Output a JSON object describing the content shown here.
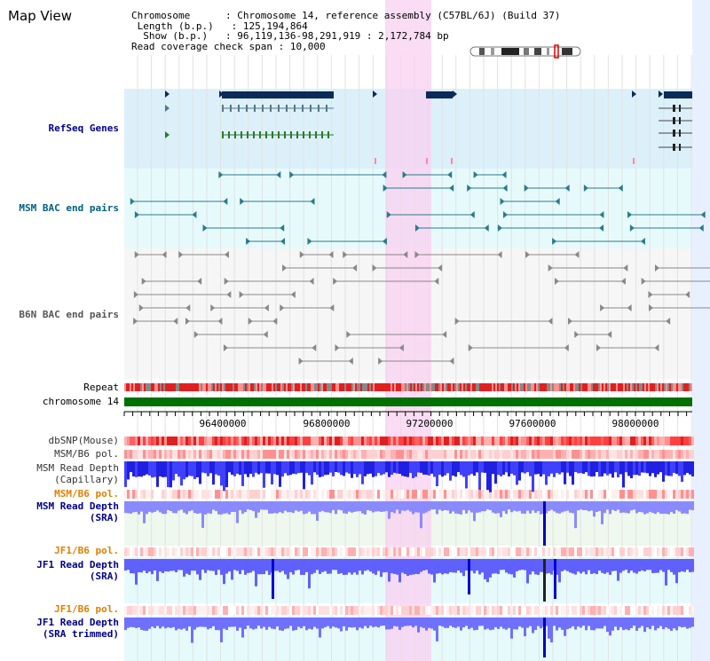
{
  "title": "Map View",
  "info": {
    "chromosome_key": "Chromosome",
    "chromosome_val": "Chromosome 14, reference assembly (C57BL/6J) (Build 37)",
    "length_key": "Length (b.p.)",
    "length_val": "125,194,864",
    "show_key": "Show (b.p.)",
    "show_val": "96,119,136-98,291,919 : 2,172,784 bp",
    "span_key": "Read coverage check span",
    "span_val": "10,000"
  },
  "tracks": {
    "refseq": "RefSeq Genes",
    "msm_bac": "MSM BAC end pairs",
    "b6n_bac": "B6N BAC end pairs",
    "repeat": "Repeat",
    "chromosome": "chromosome 14",
    "dbsnp": "dbSNP(Mouse)",
    "msm_b6_pol_1": "MSM/B6 pol.",
    "msm_depth_cap_1": "MSM Read Depth",
    "msm_depth_cap_2": "(Capillary)",
    "msm_b6_pol_2": "MSM/B6 pol.",
    "msm_depth_sra_1": "MSM Read Depth",
    "msm_depth_sra_2": "(SRA)",
    "jf1_b6_pol_1": "JF1/B6 pol.",
    "jf1_depth_sra_1": "JF1 Read Depth",
    "jf1_depth_sra_2": "(SRA)",
    "jf1_b6_pol_2": "JF1/B6 pol.",
    "jf1_depth_trim_1": "JF1 Read Depth",
    "jf1_depth_trim_2": "(SRA trimmed)"
  },
  "axis_ticks": [
    "96400000",
    "96800000",
    "97200000",
    "97600000",
    "98000000"
  ],
  "colors": {
    "refseq_label": "#00008b",
    "bac_label": "#006080",
    "pol_label": "#e08000",
    "depth_label": "#00008b",
    "highlight": "#f8d0f0",
    "gene": "#0a2a5a",
    "chromosome_bar": "#007000",
    "depth_bar": "#4040ff"
  }
}
